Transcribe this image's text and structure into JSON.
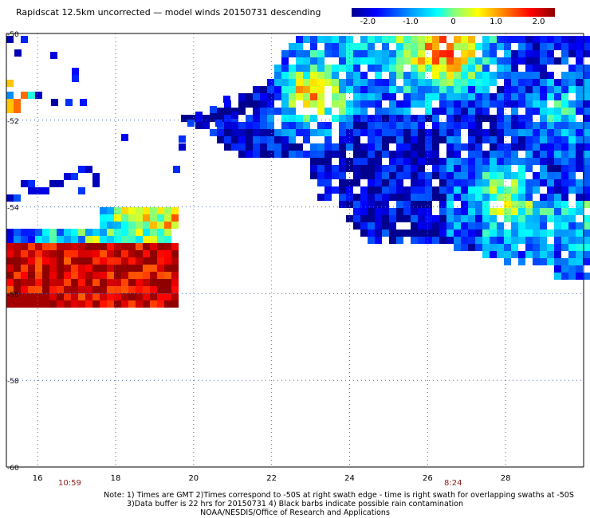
{
  "title": "Rapidscat 12.5km uncorrected — model winds 20150731 descending",
  "colorbar": {
    "ticks": [
      "-2.0",
      "-1.0",
      "0",
      "1.0",
      "2.0"
    ],
    "tick_values": [
      -2.0,
      -1.0,
      0,
      1.0,
      2.0
    ],
    "colors": [
      "#00008f",
      "#0000ff",
      "#00a0ff",
      "#00ffff",
      "#80ff80",
      "#ffff00",
      "#ff8000",
      "#ff0000",
      "#8f0000"
    ]
  },
  "axes": {
    "x_ticks": [
      "16",
      "18",
      "20",
      "22",
      "24",
      "26",
      "28"
    ],
    "y_ticks": [
      "-50",
      "-52",
      "-54",
      "-56",
      "-58",
      "-60"
    ],
    "x_range": [
      15.2,
      30.0
    ],
    "y_range": [
      -60,
      -50
    ]
  },
  "times": {
    "left": "10:59",
    "right": "8:24"
  },
  "notes": {
    "line1": "Note: 1) Times are GMT 2)Times correspond to -50S at right swath edge - time is right swath for overlapping swaths at -50S",
    "line2": "3)Data buffer is 22 hrs for 20150731 4) Black barbs indicate possible rain contamination",
    "line3": "NOAA/NESDIS/Office of Research and Applications"
  }
}
